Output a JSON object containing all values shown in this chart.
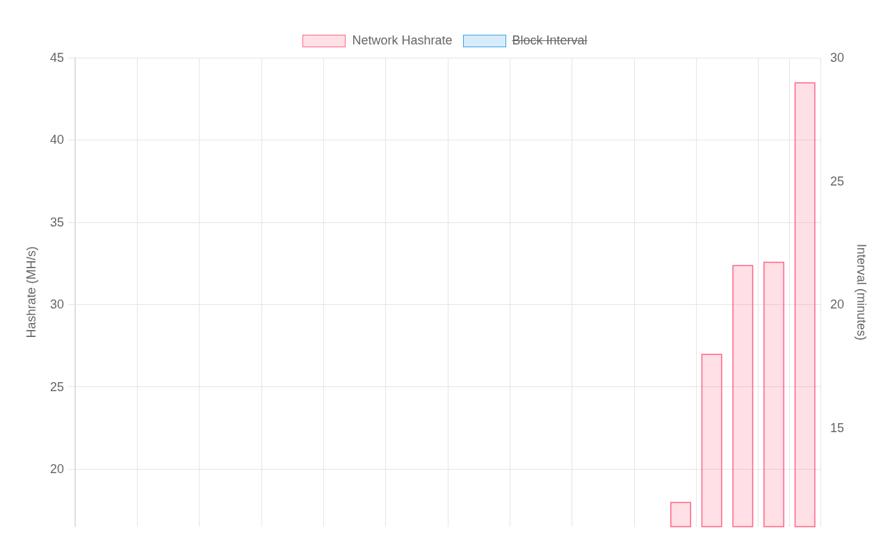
{
  "chart_data": {
    "type": "bar",
    "categories": [
      null,
      null,
      null,
      null,
      null,
      null,
      null,
      null,
      null,
      null,
      null,
      null,
      null,
      null,
      null,
      null,
      null,
      null,
      null,
      null,
      null,
      null,
      null,
      null
    ],
    "series": [
      {
        "name": "Network Hashrate",
        "color": "#ff6384",
        "values": [
          null,
          null,
          null,
          null,
          null,
          null,
          null,
          null,
          null,
          null,
          null,
          null,
          null,
          null,
          null,
          null,
          null,
          null,
          null,
          18.0,
          27.0,
          32.4,
          32.6,
          43.5
        ]
      },
      {
        "name": "Block Interval",
        "color": "#36a2eb",
        "values": [
          null,
          null,
          null,
          null,
          null,
          null,
          null,
          null,
          null,
          null,
          null,
          null,
          null,
          null,
          null,
          null,
          null,
          null,
          null,
          null,
          null,
          null,
          null,
          null
        ]
      }
    ],
    "ylabel": "Hashrate (MH/s)",
    "y2label": "Interval (minutes)",
    "ylim": [
      16.5,
      45
    ],
    "yticks": [
      20,
      25,
      30,
      35,
      40,
      45
    ],
    "y2lim": [
      11,
      30
    ],
    "y2ticks": [
      15,
      20,
      25,
      30
    ],
    "grid": true,
    "legend": "top"
  }
}
